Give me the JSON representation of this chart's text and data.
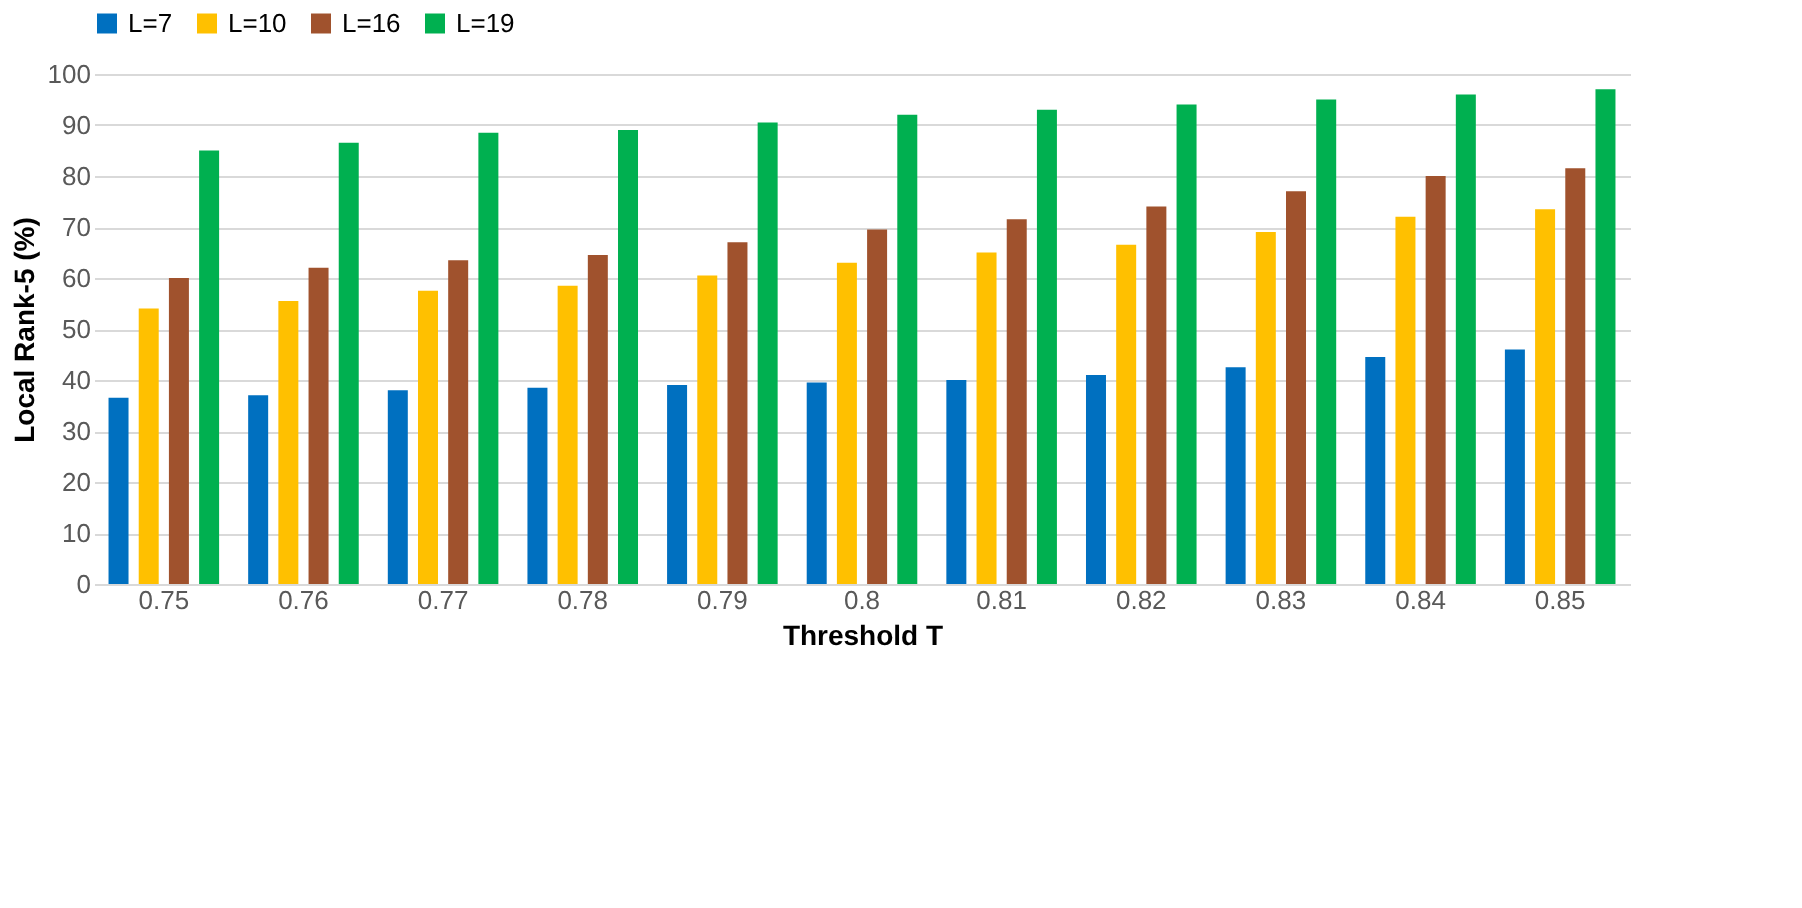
{
  "chart_data": {
    "type": "bar",
    "xlabel": "Threshold T",
    "ylabel": "Local Rank-5 (%)",
    "categories": [
      "0.75",
      "0.76",
      "0.77",
      "0.78",
      "0.79",
      "0.8",
      "0.81",
      "0.82",
      "0.83",
      "0.84",
      "0.85"
    ],
    "series": [
      {
        "name": "L=7",
        "color": "#0070c0",
        "values": [
          36.5,
          37,
          38,
          38.5,
          39,
          39.5,
          40,
          41,
          42.5,
          44.5,
          46
        ]
      },
      {
        "name": "L=10",
        "color": "#ffc000",
        "values": [
          54,
          55.5,
          57.5,
          58.5,
          60.5,
          63,
          65,
          66.5,
          69,
          72,
          73.5
        ]
      },
      {
        "name": "L=16",
        "color": "#a0522d",
        "values": [
          60,
          62,
          63.5,
          64.5,
          67,
          69.5,
          71.5,
          74,
          77,
          80,
          81.5
        ]
      },
      {
        "name": "L=19",
        "color": "#00b050",
        "values": [
          85,
          86.5,
          88.5,
          89,
          90.5,
          92,
          93,
          94,
          95,
          96,
          97
        ]
      }
    ],
    "ylim": [
      0,
      100
    ],
    "yticks": [
      0,
      10,
      20,
      30,
      40,
      50,
      60,
      70,
      80,
      90,
      100
    ],
    "grid": "y",
    "legend": "top"
  }
}
